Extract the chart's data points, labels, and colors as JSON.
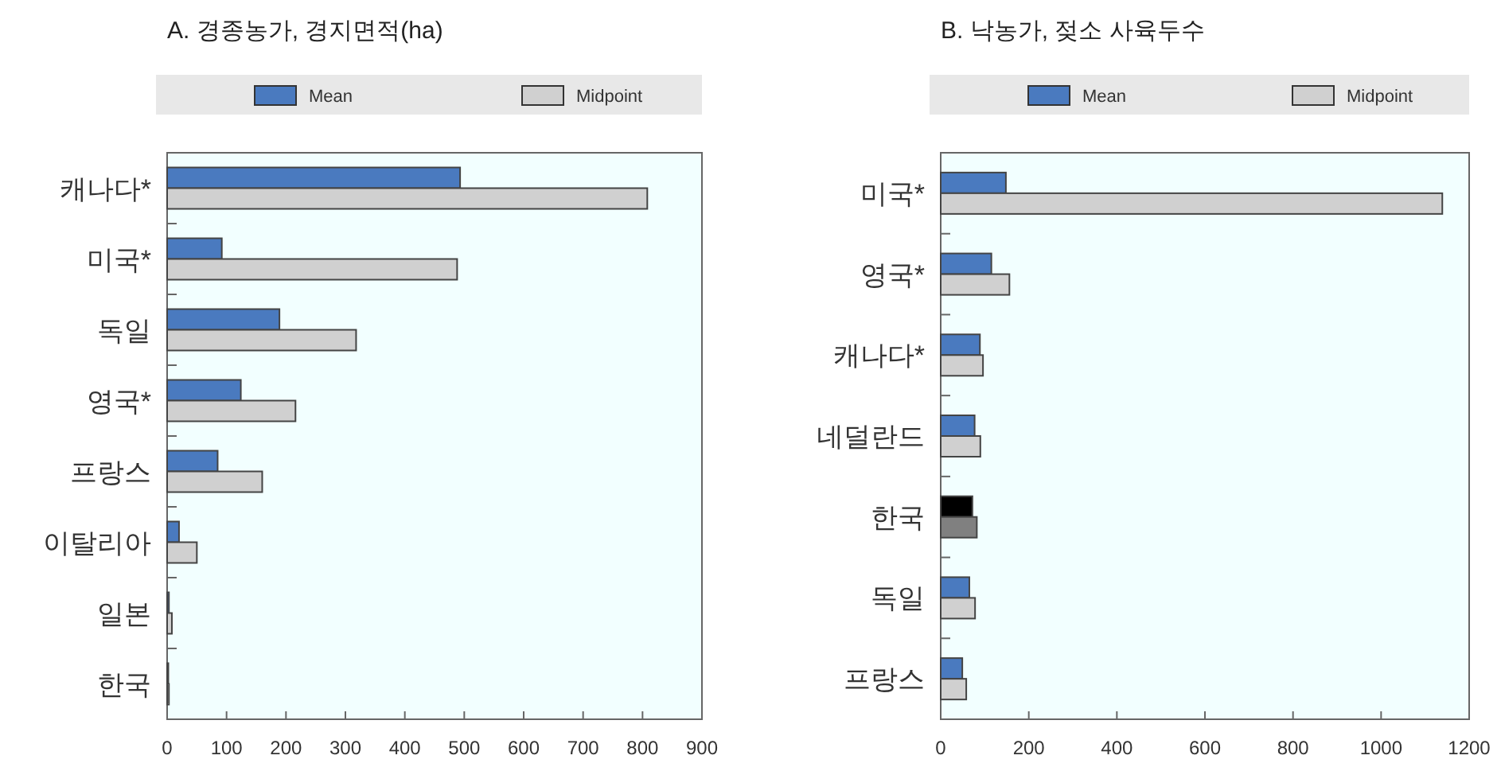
{
  "chart_data": [
    {
      "type": "bar",
      "orientation": "horizontal",
      "title": "A. 경종농가, 경지면적(ha)",
      "categories": [
        "캐나다*",
        "미국*",
        "독일",
        "영국*",
        "프랑스",
        "이탈리아",
        "일본",
        "한국"
      ],
      "legend": "top",
      "xlim": [
        0,
        900
      ],
      "xticks": [
        0,
        100,
        200,
        300,
        400,
        500,
        600,
        700,
        800,
        900
      ],
      "series": [
        {
          "name": "Mean",
          "color": "#4a7abf",
          "values": [
            493,
            92,
            189,
            124,
            85,
            20,
            3,
            2
          ]
        },
        {
          "name": "Midpoint",
          "color": "#d0d0d0",
          "values": [
            808,
            488,
            318,
            216,
            160,
            50,
            8,
            3
          ]
        }
      ]
    },
    {
      "type": "bar",
      "orientation": "horizontal",
      "title": "B. 낙농가, 젖소 사육두수",
      "categories": [
        "미국*",
        "영국*",
        "캐나다*",
        "네덜란드",
        "한국",
        "독일",
        "프랑스"
      ],
      "legend": "top",
      "xlim": [
        0,
        1200
      ],
      "xticks": [
        0,
        200,
        400,
        600,
        800,
        1000,
        1200
      ],
      "series": [
        {
          "name": "Mean",
          "color": "#4a7abf",
          "colors": [
            "#4a7abf",
            "#4a7abf",
            "#4a7abf",
            "#4a7abf",
            "#000000",
            "#4a7abf",
            "#4a7abf"
          ],
          "values": [
            148,
            115,
            89,
            77,
            72,
            65,
            49
          ]
        },
        {
          "name": "Midpoint",
          "color": "#d0d0d0",
          "colors": [
            "#d0d0d0",
            "#d0d0d0",
            "#d0d0d0",
            "#d0d0d0",
            "#808080",
            "#d0d0d0",
            "#d0d0d0"
          ],
          "values": [
            1139,
            156,
            96,
            90,
            82,
            78,
            58
          ]
        }
      ]
    }
  ]
}
